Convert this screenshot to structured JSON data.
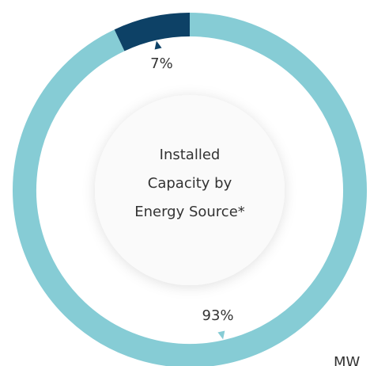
{
  "chart_data": {
    "type": "donut",
    "title_lines": [
      "Installed",
      "Capacity by",
      "Energy Source*"
    ],
    "values": [
      7,
      93
    ],
    "value_labels": [
      "7%",
      "93%"
    ],
    "colors": [
      "#0d4166",
      "#86ccd5"
    ],
    "unit_note": "MW"
  }
}
